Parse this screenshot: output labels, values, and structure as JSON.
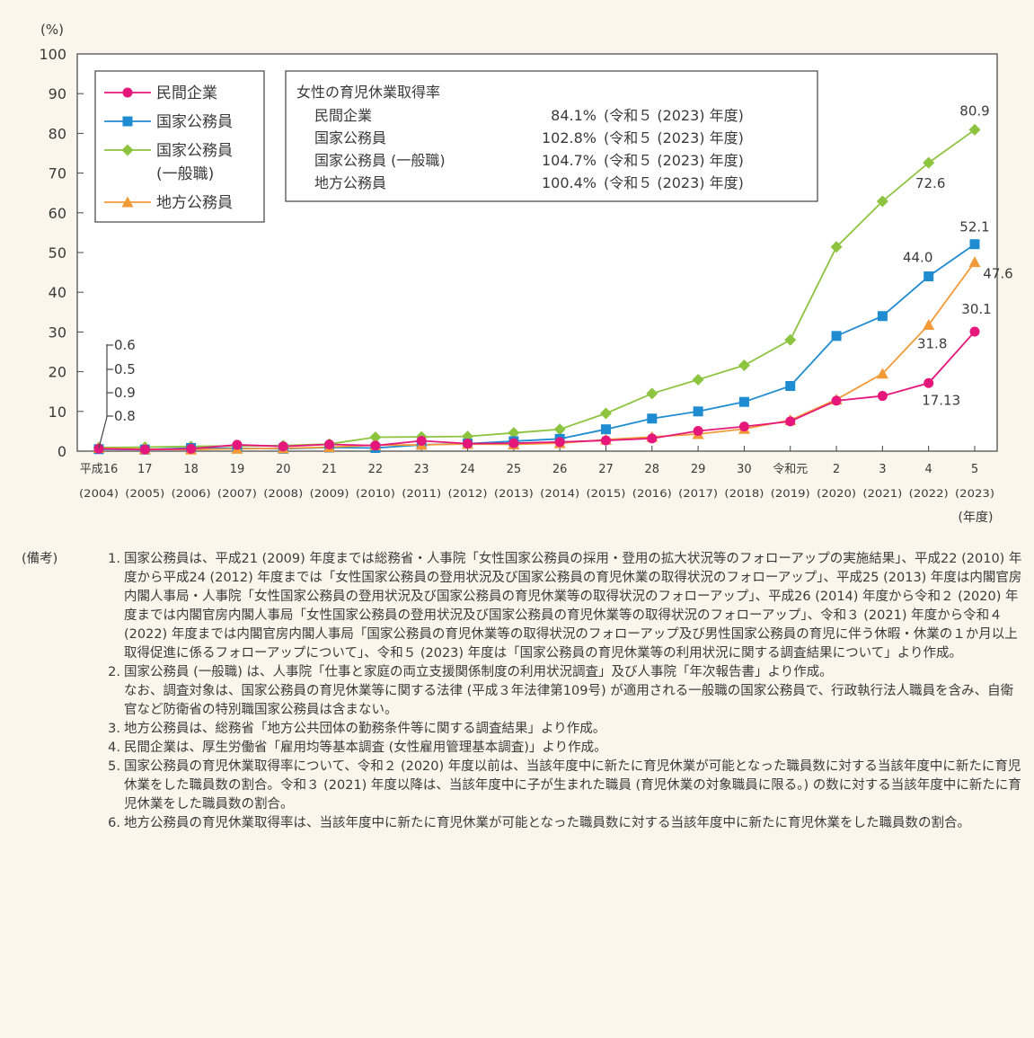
{
  "chart_data": {
    "type": "line",
    "y_unit": "(%)",
    "x_unit": "(年度)",
    "ylim": [
      0,
      100
    ],
    "yticks": [
      0,
      10,
      20,
      30,
      40,
      50,
      60,
      70,
      80,
      90,
      100
    ],
    "categories": [
      {
        "era": "平成16",
        "year": "(2004)"
      },
      {
        "era": "17",
        "year": "(2005)"
      },
      {
        "era": "18",
        "year": "(2006)"
      },
      {
        "era": "19",
        "year": "(2007)"
      },
      {
        "era": "20",
        "year": "(2008)"
      },
      {
        "era": "21",
        "year": "(2009)"
      },
      {
        "era": "22",
        "year": "(2010)"
      },
      {
        "era": "23",
        "year": "(2011)"
      },
      {
        "era": "24",
        "year": "(2012)"
      },
      {
        "era": "25",
        "year": "(2013)"
      },
      {
        "era": "26",
        "year": "(2014)"
      },
      {
        "era": "27",
        "year": "(2015)"
      },
      {
        "era": "28",
        "year": "(2016)"
      },
      {
        "era": "29",
        "year": "(2017)"
      },
      {
        "era": "30",
        "year": "(2018)"
      },
      {
        "era": "令和元",
        "year": "(2019)"
      },
      {
        "era": "2",
        "year": "(2020)"
      },
      {
        "era": "3",
        "year": "(2021)"
      },
      {
        "era": "4",
        "year": "(2022)"
      },
      {
        "era": "5",
        "year": "(2023)"
      }
    ],
    "series": [
      {
        "name": "民間企業",
        "color": "#e6177b",
        "marker": "circle",
        "values": [
          0.6,
          0.4,
          0.6,
          1.6,
          1.2,
          1.7,
          1.4,
          2.6,
          1.9,
          2.0,
          2.3,
          2.7,
          3.2,
          5.1,
          6.2,
          7.5,
          12.7,
          13.9,
          17.13,
          30.1
        ]
      },
      {
        "name": "国家公務員",
        "color": "#1f8bd0",
        "marker": "square",
        "values": [
          0.5,
          0.4,
          0.8,
          0.7,
          0.6,
          0.9,
          0.8,
          1.6,
          1.9,
          2.5,
          3.1,
          5.5,
          8.2,
          10.0,
          12.4,
          16.4,
          29.0,
          34.0,
          44.0,
          52.1
        ]
      },
      {
        "name": "国家公務員\n(一般職)",
        "color": "#8dc43f",
        "marker": "diamond",
        "values": [
          0.9,
          1.0,
          1.2,
          1.3,
          1.4,
          1.8,
          3.5,
          3.6,
          3.7,
          4.6,
          5.5,
          9.5,
          14.5,
          18.0,
          21.6,
          28.0,
          51.4,
          62.9,
          72.6,
          80.9
        ]
      },
      {
        "name": "地方公務員",
        "color": "#f29a37",
        "marker": "triangle",
        "values": [
          0.8,
          0.5,
          0.4,
          0.6,
          0.7,
          1.0,
          1.5,
          1.6,
          1.8,
          1.7,
          2.0,
          2.9,
          3.6,
          4.3,
          5.6,
          7.8,
          13.0,
          19.5,
          31.8,
          47.6
        ]
      }
    ],
    "data_labels": [
      {
        "series": 2,
        "index": 19,
        "text": "80.9"
      },
      {
        "series": 2,
        "index": 18,
        "text": "72.6"
      },
      {
        "series": 1,
        "index": 19,
        "text": "52.1"
      },
      {
        "series": 1,
        "index": 18,
        "text": "44.0"
      },
      {
        "series": 3,
        "index": 19,
        "text": "47.6"
      },
      {
        "series": 3,
        "index": 18,
        "text": "31.8"
      },
      {
        "series": 0,
        "index": 19,
        "text": "30.1"
      },
      {
        "series": 0,
        "index": 18,
        "text": "17.13"
      }
    ],
    "first_year_callouts": [
      "0.6",
      "0.5",
      "0.9",
      "0.8"
    ],
    "grid": false,
    "legend_position": "top-left"
  },
  "inset": {
    "title": "女性の育児休業取得率",
    "rows": [
      {
        "label": "民間企業",
        "value": "84.1%",
        "note": "(令和５ (2023) 年度)"
      },
      {
        "label": "国家公務員",
        "value": "102.8%",
        "note": "(令和５ (2023) 年度)"
      },
      {
        "label": "国家公務員 (一般職)",
        "value": "104.7%",
        "note": "(令和５ (2023) 年度)"
      },
      {
        "label": "地方公務員",
        "value": "100.4%",
        "note": "(令和５ (2023) 年度)"
      }
    ]
  },
  "notes": {
    "label": "(備考)",
    "items": [
      {
        "num": "1.",
        "text": "国家公務員は、平成21 (2009) 年度までは総務省・人事院「女性国家公務員の採用・登用の拡大状況等のフォローアップの実施結果」、平成22 (2010) 年度から平成24 (2012) 年度までは「女性国家公務員の登用状況及び国家公務員の育児休業の取得状況のフォローアップ」、平成25 (2013) 年度は内閣官房内閣人事局・人事院「女性国家公務員の登用状況及び国家公務員の育児休業等の取得状況のフォローアップ」、平成26 (2014) 年度から令和２ (2020) 年度までは内閣官房内閣人事局「女性国家公務員の登用状況及び国家公務員の育児休業等の取得状況のフォローアップ」、令和３ (2021) 年度から令和４ (2022) 年度までは内閣官房内閣人事局「国家公務員の育児休業等の取得状況のフォローアップ及び男性国家公務員の育児に伴う休暇・休業の１か月以上取得促進に係るフォローアップについて」、令和５ (2023) 年度は「国家公務員の育児休業等の利用状況に関する調査結果について」より作成。"
      },
      {
        "num": "2.",
        "text": "国家公務員 (一般職) は、人事院「仕事と家庭の両立支援関係制度の利用状況調査」及び人事院「年次報告書」より作成。"
      },
      {
        "num": "",
        "text": "なお、調査対象は、国家公務員の育児休業等に関する法律 (平成３年法律第109号) が適用される一般職の国家公務員で、行政執行法人職員を含み、自衛官など防衛省の特別職国家公務員は含まない。"
      },
      {
        "num": "3.",
        "text": "地方公務員は、総務省「地方公共団体の勤務条件等に関する調査結果」より作成。"
      },
      {
        "num": "4.",
        "text": "民間企業は、厚生労働省「雇用均等基本調査 (女性雇用管理基本調査)」より作成。"
      },
      {
        "num": "5.",
        "text": "国家公務員の育児休業取得率について、令和２ (2020) 年度以前は、当該年度中に新たに育児休業が可能となった職員数に対する当該年度中に新たに育児休業をした職員数の割合。令和３ (2021) 年度以降は、当該年度中に子が生まれた職員 (育児休業の対象職員に限る。) の数に対する当該年度中に新たに育児休業をした職員数の割合。"
      },
      {
        "num": "6.",
        "text": "地方公務員の育児休業取得率は、当該年度中に新たに育児休業が可能となった職員数に対する当該年度中に新たに育児休業をした職員数の割合。"
      }
    ]
  }
}
